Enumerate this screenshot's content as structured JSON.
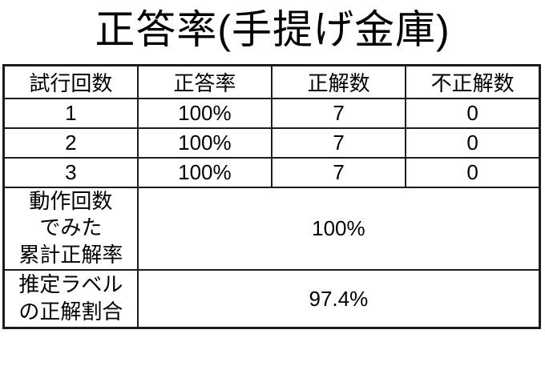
{
  "title": "正答率(手提げ金庫)",
  "chart_data": {
    "type": "table",
    "title": "正答率(手提げ金庫)",
    "columns": [
      "試行回数",
      "正答率",
      "正解数",
      "不正解数"
    ],
    "rows": [
      [
        "1",
        "100%",
        "7",
        "0"
      ],
      [
        "2",
        "100%",
        "7",
        "0"
      ],
      [
        "3",
        "100%",
        "7",
        "0"
      ]
    ],
    "summary": [
      {
        "label": "動作回数\nでみた\n累計正解率",
        "value": "100%"
      },
      {
        "label": "推定ラベル\nの正解割合",
        "value": "97.4%"
      }
    ]
  },
  "colors": {
    "background": "#ffffff",
    "text": "#000000",
    "border": "#1c1c1c"
  }
}
